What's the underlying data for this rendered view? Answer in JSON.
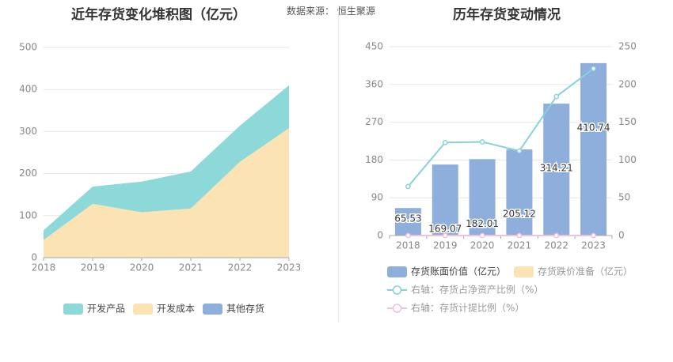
{
  "header": {
    "left_title": "近年存货变化堆积图（亿元）",
    "source": "数据来源：  恒生聚源",
    "right_title": "历年存货变动情况"
  },
  "colors": {
    "dev_products": "#8dd8d8",
    "dev_cost": "#fce3b3",
    "other_inventory": "#8eaedb",
    "bar": "#8eaedb",
    "ratio_line": "#86d3d6",
    "provision_line": "#eec1dc",
    "grid": "#e6e6e6",
    "axis_text": "#888888"
  },
  "chart_data": [
    {
      "type": "area",
      "stacked": true,
      "title": "近年存货变化堆积图（亿元）",
      "x": [
        "2018",
        "2019",
        "2020",
        "2021",
        "2022",
        "2023"
      ],
      "ylim": [
        0,
        500
      ],
      "yticks": [
        0,
        100,
        200,
        300,
        400,
        500
      ],
      "series": [
        {
          "name": "开发成本",
          "values": [
            42,
            128,
            108,
            117,
            228,
            308
          ]
        },
        {
          "name": "开发产品",
          "values": [
            23,
            41,
            73,
            88,
            86,
            102
          ]
        },
        {
          "name": "其他存货",
          "values": [
            0,
            0,
            0,
            0,
            0,
            0
          ]
        }
      ],
      "legend": [
        "开发产品",
        "开发成本",
        "其他存货"
      ],
      "legend_position": "bottom"
    },
    {
      "type": "bar",
      "title": "历年存货变动情况",
      "categories": [
        "2018",
        "2019",
        "2020",
        "2021",
        "2022",
        "2023"
      ],
      "ylim_left": [
        0,
        450
      ],
      "yticks_left": [
        0,
        90,
        180,
        270,
        360,
        450
      ],
      "ylim_right": [
        0,
        250
      ],
      "yticks_right": [
        0,
        50,
        100,
        150,
        200,
        250
      ],
      "series": [
        {
          "name": "存货账面价值（亿元）",
          "axis": "left",
          "kind": "bar",
          "values": [
            65.53,
            169.07,
            182.01,
            205.12,
            314.21,
            410.74
          ],
          "labels": [
            "65.53",
            "169.07",
            "182.01",
            "205.12",
            "314.21",
            "410.74"
          ]
        },
        {
          "name": "存货跌价准备（亿元）",
          "axis": "left",
          "kind": "bar",
          "values": [
            0,
            0,
            0,
            0,
            0,
            0
          ]
        },
        {
          "name": "右轴：存货占净资产比例（%）",
          "axis": "right",
          "kind": "line",
          "values": [
            65,
            123,
            124,
            112,
            184,
            221
          ]
        },
        {
          "name": "右轴：存货计提比例（%）",
          "axis": "right",
          "kind": "line",
          "values": [
            0,
            0,
            0,
            0,
            0,
            0
          ]
        }
      ],
      "legend_position": "bottom"
    }
  ]
}
